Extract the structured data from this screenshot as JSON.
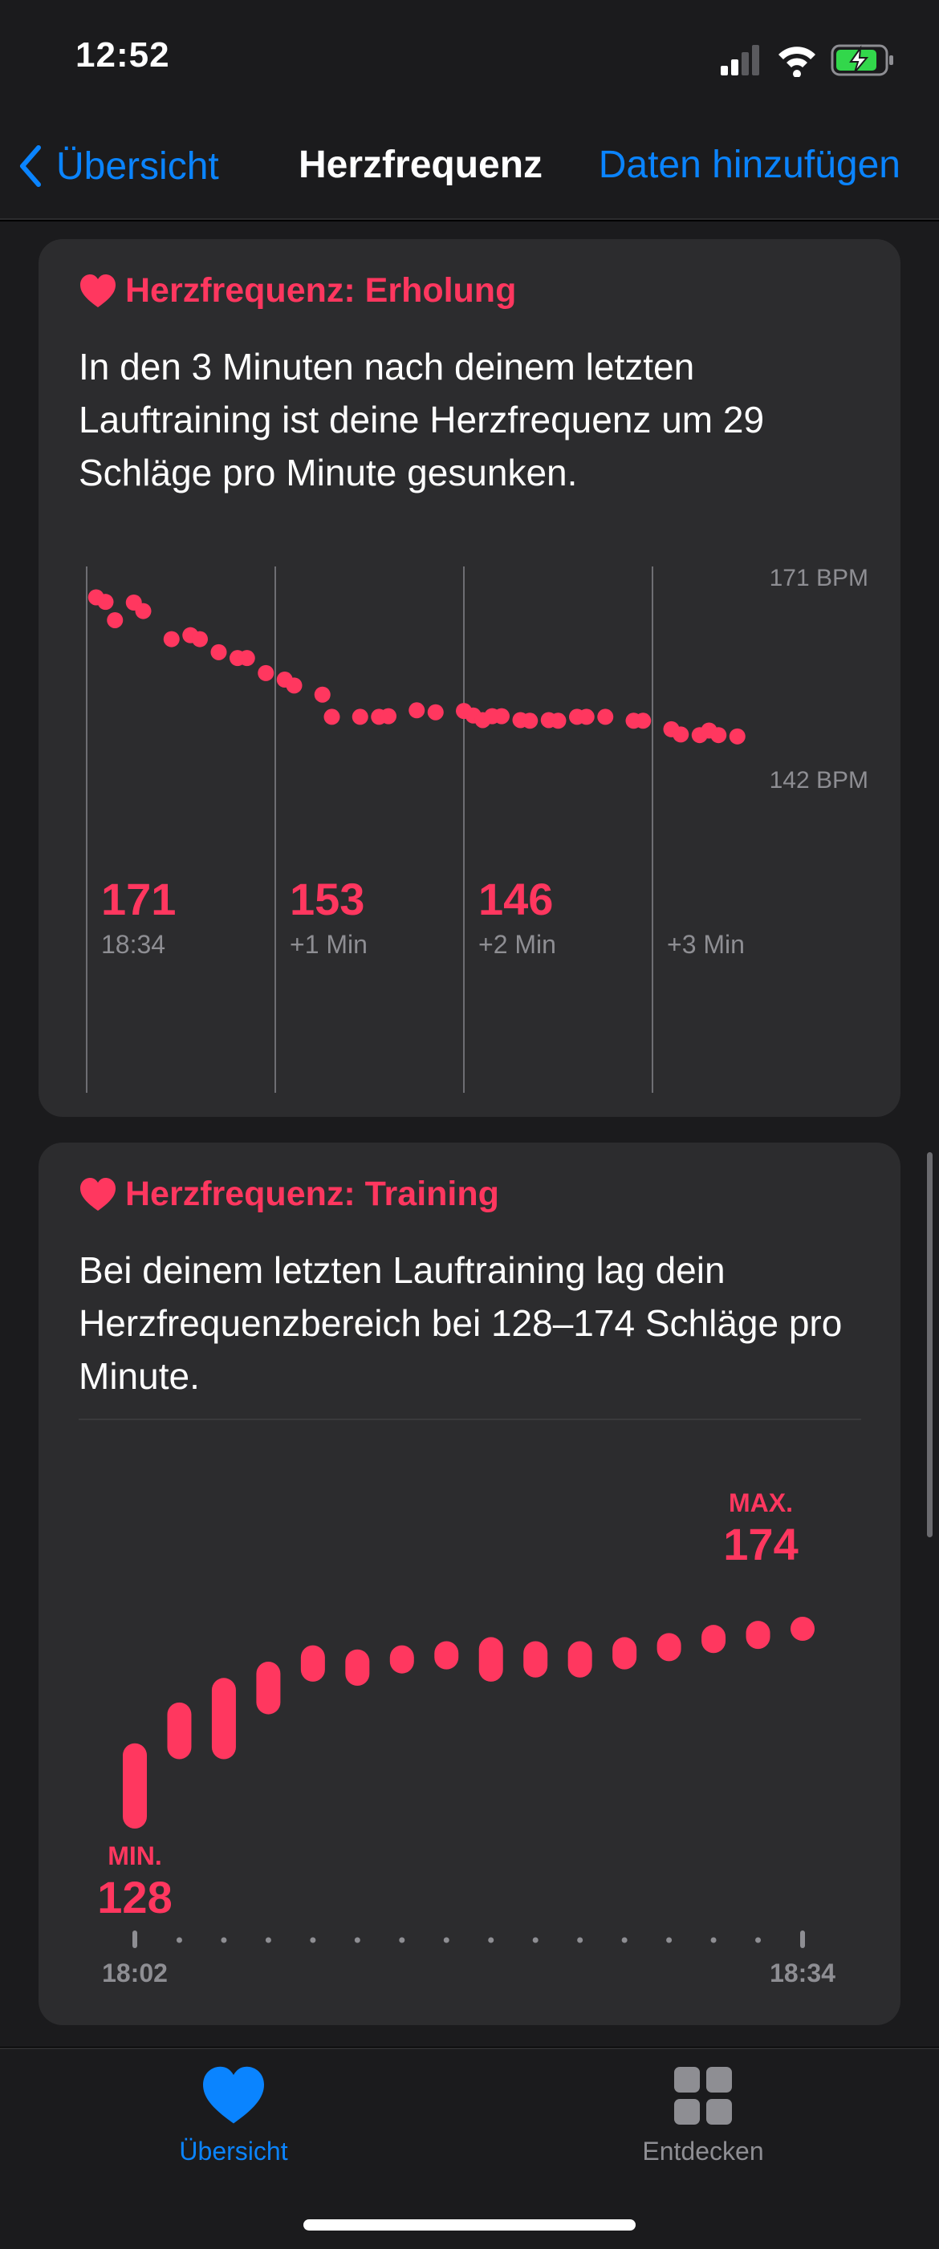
{
  "status_bar": {
    "time": "12:52"
  },
  "nav": {
    "back_label": "Übersicht",
    "title": "Herzfrequenz",
    "action_label": "Daten hinzufügen"
  },
  "recovery_card": {
    "header": "Herzfrequenz: Erholung",
    "text": "In den 3 Minuten nach deinem letzten Lauftraining ist deine Herzfrequenz um 29 Schläge pro Minute gesunken."
  },
  "training_card": {
    "header": "Herzfrequenz: Training",
    "text": "Bei deinem letzten Lauftraining lag dein Herzfrequenzbereich bei 128–174 Schläge pro Minute."
  },
  "tabbar": {
    "overview_label": "Übersicht",
    "discover_label": "Entdecken"
  },
  "colors": {
    "accent": "#0a84ff",
    "heart": "#ff375f",
    "card": "#2c2c2e",
    "background": "#1b1b1d"
  },
  "chart_data": [
    {
      "type": "scatter",
      "ylim": [
        142,
        171
      ],
      "y_axis_labels": [
        "171 BPM",
        "142 BPM"
      ],
      "x": [
        0.05,
        0.1,
        0.15,
        0.25,
        0.3,
        0.45,
        0.55,
        0.6,
        0.7,
        0.8,
        0.85,
        0.95,
        1.05,
        1.1,
        1.25,
        1.3,
        1.45,
        1.55,
        1.6,
        1.75,
        1.85,
        2.0,
        2.05,
        2.1,
        2.15,
        2.2,
        2.3,
        2.35,
        2.45,
        2.5,
        2.6,
        2.65,
        2.75,
        2.9,
        2.95,
        3.1,
        3.15,
        3.25,
        3.3,
        3.35,
        3.45
      ],
      "y": [
        167.5,
        166.8,
        164.0,
        166.7,
        165.4,
        161.1,
        161.7,
        161.1,
        159.1,
        158.2,
        158.2,
        155.9,
        154.9,
        154.0,
        152.6,
        149.2,
        149.2,
        149.2,
        149.3,
        150.2,
        149.9,
        150.1,
        149.4,
        148.7,
        149.3,
        149.3,
        148.7,
        148.6,
        148.7,
        148.6,
        149.2,
        149.2,
        149.2,
        148.6,
        148.6,
        147.3,
        146.5,
        146.4,
        147.1,
        146.4,
        146.2
      ],
      "markers": [
        {
          "value": "171",
          "label": "18:34"
        },
        {
          "value": "153",
          "label": "+1 Min"
        },
        {
          "value": "146",
          "label": "+2 Min"
        },
        {
          "value": "",
          "label": "+3 Min"
        }
      ]
    },
    {
      "type": "range-bar",
      "ylim": [
        128,
        174
      ],
      "series": [
        {
          "low": [
            128,
            145,
            145,
            156,
            164,
            163,
            166,
            167,
            164,
            165,
            165,
            167,
            169,
            171,
            172,
            174
          ],
          "high": [
            143,
            153,
            159,
            163,
            167,
            166,
            167,
            168,
            169,
            168,
            168,
            169,
            170,
            172,
            173,
            174
          ]
        }
      ],
      "min_label": "MIN.",
      "min_value": "128",
      "max_label": "MAX.",
      "max_value": "174",
      "x_start_label": "18:02",
      "x_end_label": "18:34"
    }
  ]
}
